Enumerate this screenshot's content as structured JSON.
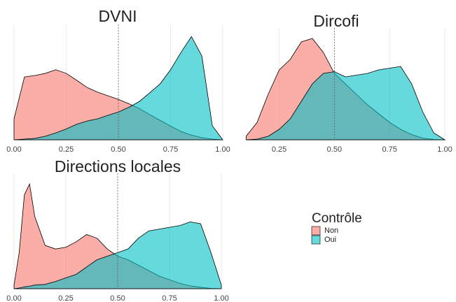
{
  "chart_data": [
    {
      "type": "density",
      "title": "DVNI",
      "grid": true,
      "vline": 0.5,
      "x": [
        0,
        0.05,
        0.1,
        0.15,
        0.2,
        0.25,
        0.3,
        0.35,
        0.4,
        0.45,
        0.5,
        0.55,
        0.6,
        0.65,
        0.7,
        0.75,
        0.8,
        0.85,
        0.9,
        0.95,
        1
      ],
      "series": [
        {
          "name": "Non",
          "color": "#F8766D",
          "values": [
            0.58,
            1.74,
            1.78,
            1.84,
            1.94,
            1.84,
            1.65,
            1.45,
            1.32,
            1.22,
            1.12,
            1.0,
            0.87,
            0.7,
            0.54,
            0.38,
            0.23,
            0.13,
            0.06,
            0.02,
            0
          ]
        },
        {
          "name": "Oui",
          "color": "#00BFC4",
          "values": [
            0,
            0.02,
            0.04,
            0.1,
            0.19,
            0.3,
            0.43,
            0.52,
            0.58,
            0.68,
            0.77,
            0.9,
            1.06,
            1.3,
            1.55,
            1.94,
            2.42,
            2.86,
            2.32,
            0.39,
            0
          ]
        }
      ],
      "xlim": [
        0,
        1
      ],
      "ylim": [
        0,
        3
      ],
      "xticks": [
        {
          "value": 0,
          "label": "0.00"
        },
        {
          "value": 0.25,
          "label": "0.25"
        },
        {
          "value": 0.5,
          "label": "0.50"
        },
        {
          "value": 0.75,
          "label": "0.75"
        },
        {
          "value": 1,
          "label": "1.00"
        }
      ]
    },
    {
      "type": "density",
      "title": "Dircofi",
      "grid": true,
      "vline": 0.5,
      "x": [
        0.1,
        0.15,
        0.2,
        0.25,
        0.3,
        0.35,
        0.4,
        0.45,
        0.5,
        0.55,
        0.6,
        0.65,
        0.7,
        0.75,
        0.8,
        0.85,
        0.9,
        0.95,
        1
      ],
      "series": [
        {
          "name": "Non",
          "color": "#F8766D",
          "values": [
            0.1,
            0.5,
            1.3,
            2.0,
            2.3,
            2.8,
            2.9,
            2.5,
            1.9,
            1.6,
            1.3,
            1.0,
            0.75,
            0.5,
            0.3,
            0.15,
            0.05,
            0.01,
            0
          ]
        },
        {
          "name": "Oui",
          "color": "#00BFC4",
          "values": [
            0,
            0.02,
            0.1,
            0.3,
            0.6,
            1.1,
            1.6,
            1.9,
            1.95,
            1.8,
            1.85,
            1.9,
            2.0,
            2.05,
            2.1,
            1.6,
            0.8,
            0.2,
            0
          ]
        }
      ],
      "xlim": [
        0.08,
        1
      ],
      "ylim": [
        0,
        3
      ],
      "xticks": [
        {
          "value": 0.25,
          "label": "0.25"
        },
        {
          "value": 0.5,
          "label": "0.50"
        },
        {
          "value": 0.75,
          "label": "0.75"
        },
        {
          "value": 1,
          "label": "1.00"
        }
      ]
    },
    {
      "type": "density",
      "title": "Directions locales",
      "grid": true,
      "vline": 0.5,
      "x": [
        0,
        0.025,
        0.05,
        0.075,
        0.1,
        0.15,
        0.2,
        0.25,
        0.3,
        0.35,
        0.4,
        0.45,
        0.5,
        0.55,
        0.6,
        0.65,
        0.7,
        0.75,
        0.8,
        0.85,
        0.9,
        0.95,
        1
      ],
      "series": [
        {
          "name": "Non",
          "color": "#F8766D",
          "values": [
            0.1,
            1.0,
            2.6,
            2.9,
            2.0,
            1.2,
            1.1,
            1.15,
            1.3,
            1.5,
            1.4,
            1.1,
            0.9,
            0.8,
            0.65,
            0.5,
            0.35,
            0.25,
            0.15,
            0.08,
            0.04,
            0.01,
            0
          ]
        },
        {
          "name": "Oui",
          "color": "#00BFC4",
          "values": [
            0,
            0.02,
            0.05,
            0.07,
            0.1,
            0.12,
            0.2,
            0.3,
            0.4,
            0.6,
            0.8,
            0.9,
            1.0,
            1.1,
            1.4,
            1.6,
            1.65,
            1.7,
            1.75,
            1.85,
            1.8,
            1.0,
            0.1
          ]
        }
      ],
      "xlim": [
        0,
        1
      ],
      "ylim": [
        0,
        3
      ],
      "xticks": [
        {
          "value": 0,
          "label": "0.00"
        },
        {
          "value": 0.25,
          "label": "0.25"
        },
        {
          "value": 0.5,
          "label": "0.50"
        },
        {
          "value": 0.75,
          "label": "0.75"
        },
        {
          "value": 1,
          "label": "1.00"
        }
      ]
    }
  ],
  "legend_title": "Contrôle"
}
